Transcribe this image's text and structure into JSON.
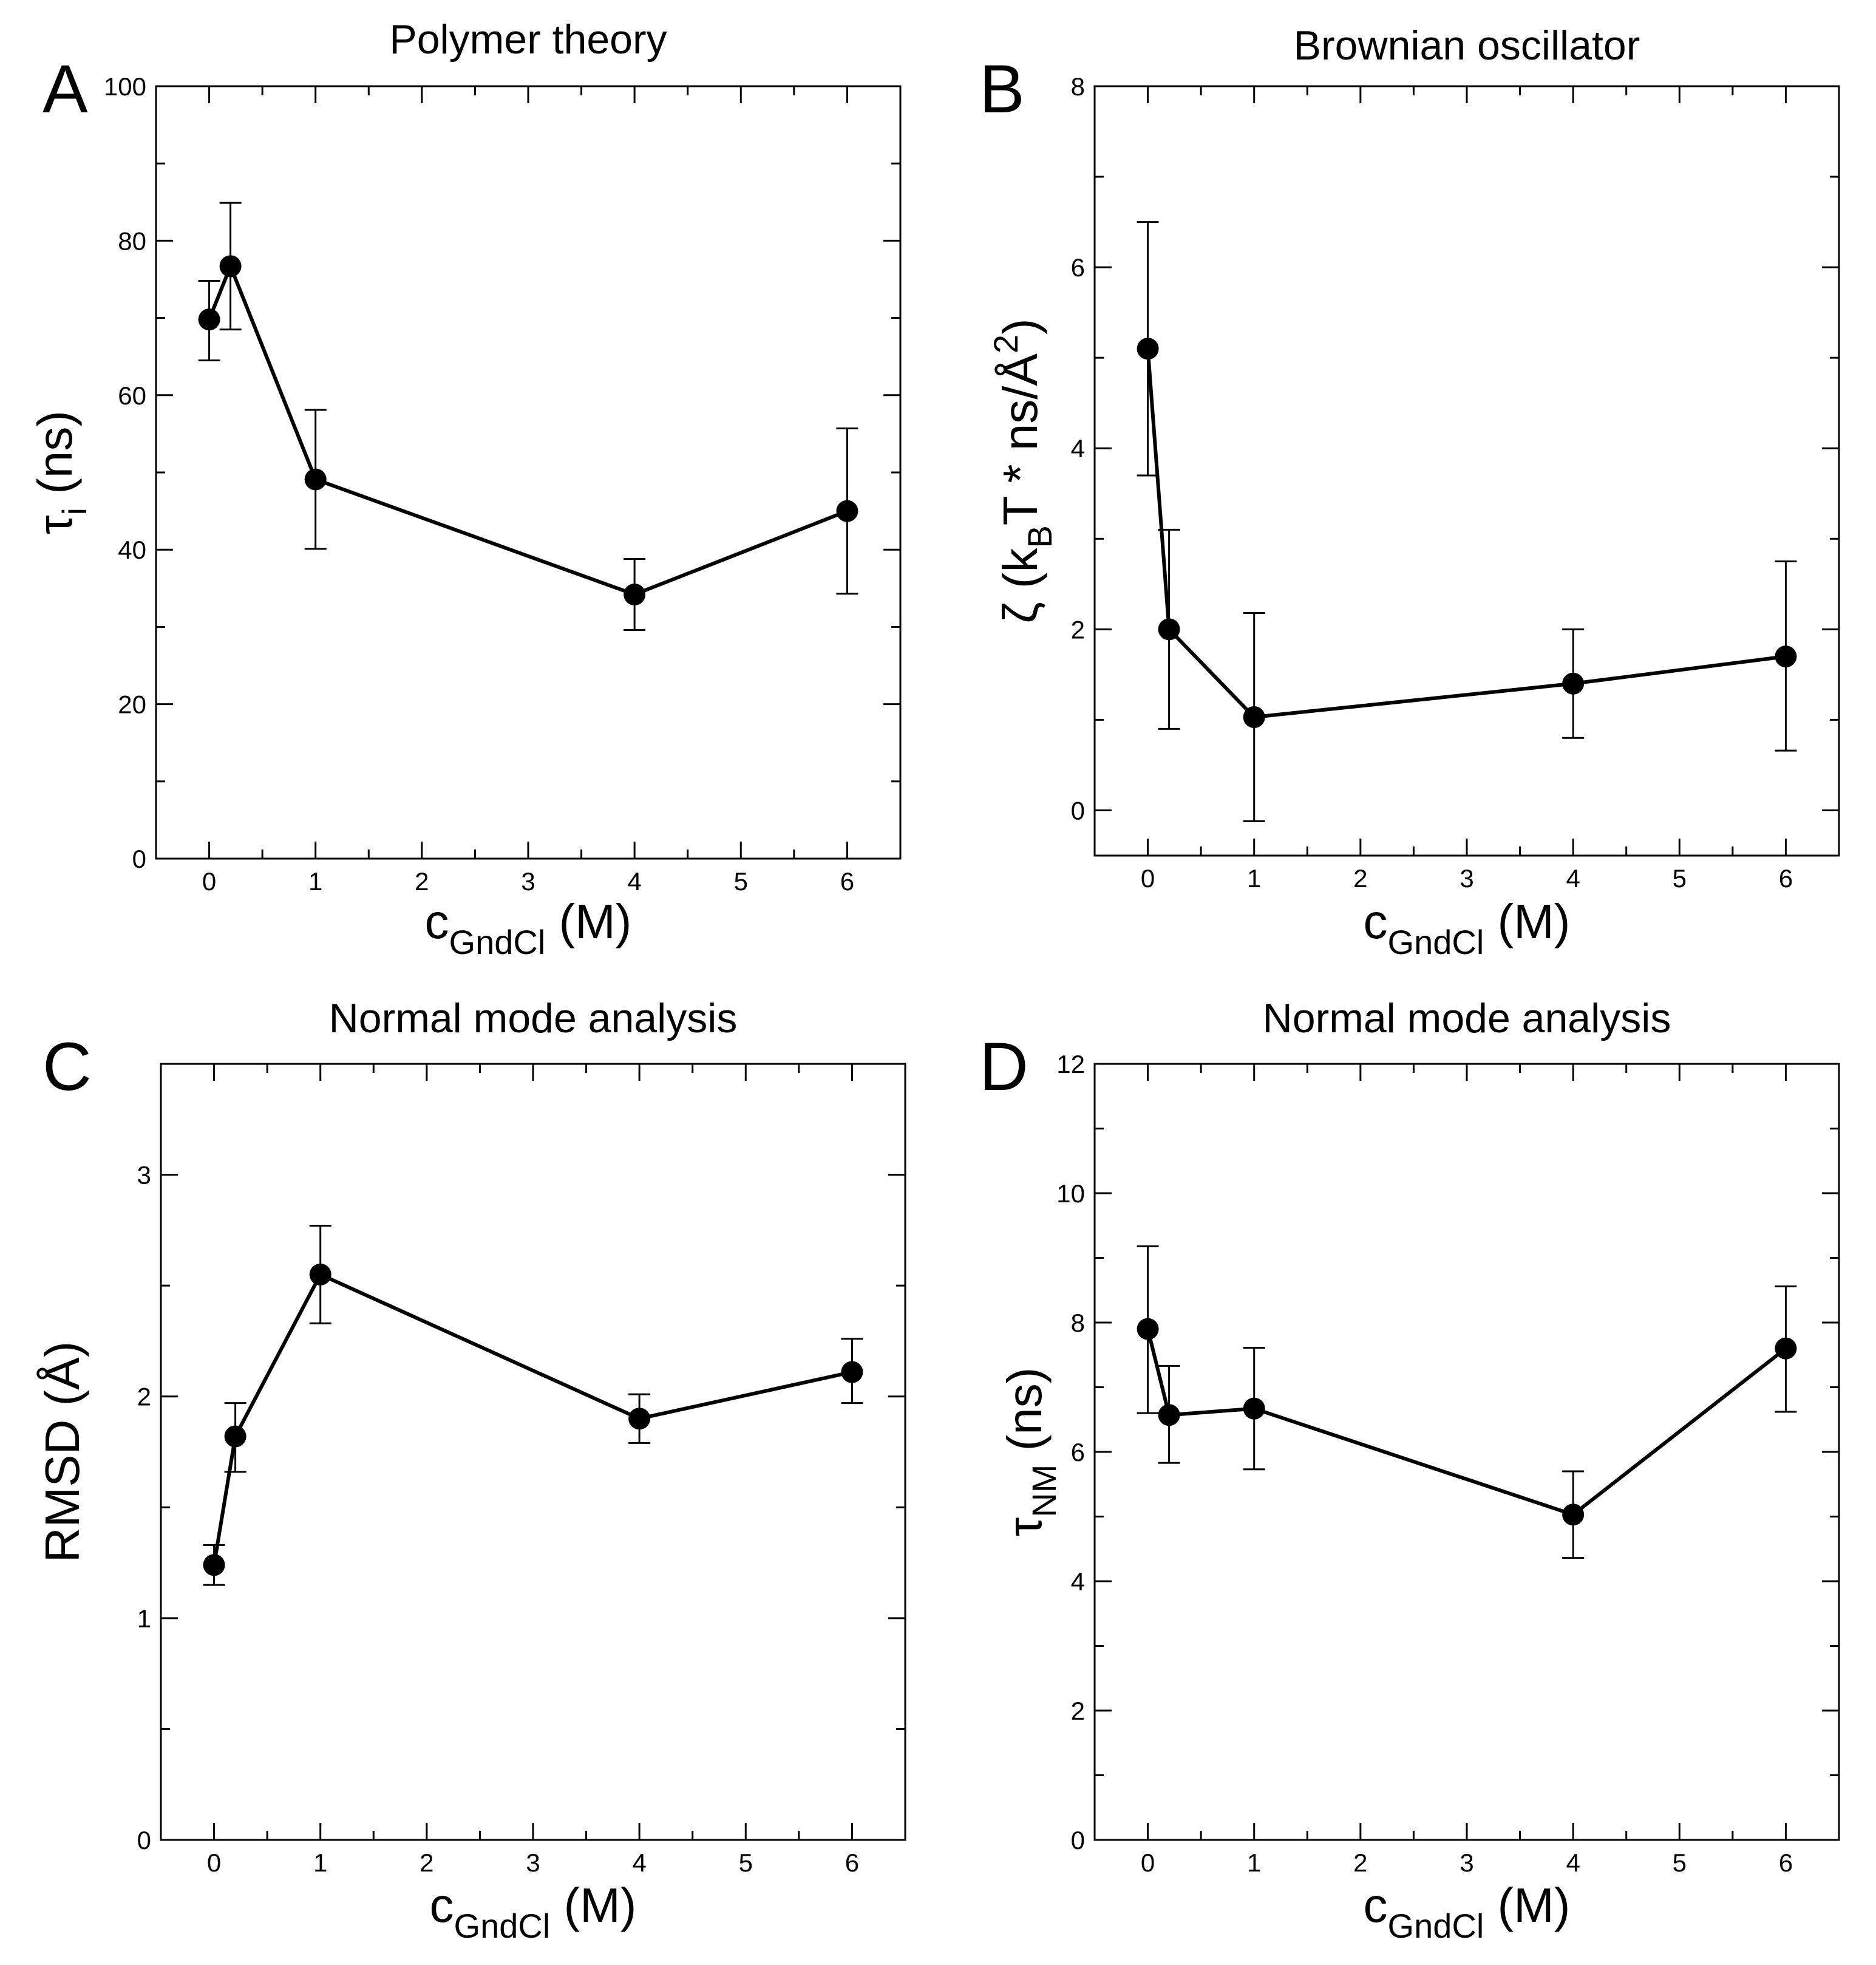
{
  "chart_data": [
    {
      "panel": "A",
      "type": "line",
      "title": "Polymer theory",
      "ylabel": {
        "base": "τ",
        "sub": "i",
        "rest": " (ns)"
      },
      "xlabel": {
        "base": "c",
        "sub": "GndCl",
        "rest": " (M)"
      },
      "xlim": [
        -0.5,
        6.5
      ],
      "ylim": [
        0,
        100
      ],
      "xticks": [
        "0",
        "1",
        "2",
        "3",
        "4",
        "5",
        "6"
      ],
      "yticks": [
        "0",
        "20",
        "40",
        "60",
        "80",
        "100"
      ],
      "x": [
        0,
        0.2,
        1,
        4,
        6
      ],
      "y": [
        69.8,
        76.7,
        49.1,
        34.2,
        45.0
      ],
      "err_low": [
        64.5,
        68.5,
        40.1,
        29.6,
        34.3
      ],
      "err_high": [
        74.8,
        84.9,
        58.1,
        38.8,
        55.7
      ]
    },
    {
      "panel": "B",
      "type": "line",
      "title": "Brownian oscillator",
      "ylabel": {
        "parts": [
          "ζ (k",
          "B",
          "T * ns/Å",
          "2",
          ")"
        ]
      },
      "xlabel": {
        "base": "c",
        "sub": "GndCl",
        "rest": " (M)"
      },
      "xlim": [
        -0.5,
        6.5
      ],
      "ylim": [
        -0.5,
        8
      ],
      "xticks": [
        "0",
        "1",
        "2",
        "3",
        "4",
        "5",
        "6"
      ],
      "yticks": [
        "0",
        "2",
        "4",
        "6",
        "8"
      ],
      "x": [
        0,
        0.2,
        1,
        4,
        6
      ],
      "y": [
        5.1,
        2.0,
        1.03,
        1.4,
        1.7
      ],
      "err_low": [
        3.7,
        0.9,
        -0.12,
        0.8,
        0.66
      ],
      "err_high": [
        6.5,
        3.1,
        2.18,
        2.0,
        2.75
      ]
    },
    {
      "panel": "C",
      "type": "line",
      "title": "Normal mode analysis",
      "ylabel": {
        "base": "RMSD (Å)",
        "sub": "",
        "rest": ""
      },
      "xlabel": {
        "base": "c",
        "sub": "GndCl",
        "rest": " (M)"
      },
      "xlim": [
        -0.5,
        6.5
      ],
      "ylim": [
        0,
        3.5
      ],
      "xticks": [
        "0",
        "1",
        "2",
        "3",
        "4",
        "5",
        "6"
      ],
      "yticks": [
        "0",
        "1",
        "2",
        "3"
      ],
      "x": [
        0,
        0.2,
        1,
        4,
        6
      ],
      "y": [
        1.24,
        1.82,
        2.55,
        1.9,
        2.11
      ],
      "err_low": [
        1.15,
        1.66,
        2.33,
        1.79,
        1.97
      ],
      "err_high": [
        1.33,
        1.97,
        2.77,
        2.01,
        2.26
      ]
    },
    {
      "panel": "D",
      "type": "line",
      "title": "Normal mode analysis",
      "ylabel": {
        "base": "τ",
        "sub": "NM",
        "rest": " (ns)"
      },
      "xlabel": {
        "base": "c",
        "sub": "GndCl",
        "rest": " (M)"
      },
      "xlim": [
        -0.5,
        6.5
      ],
      "ylim": [
        0,
        12
      ],
      "xticks": [
        "0",
        "1",
        "2",
        "3",
        "4",
        "5",
        "6"
      ],
      "yticks": [
        "0",
        "2",
        "4",
        "6",
        "8",
        "10",
        "12"
      ],
      "x": [
        0,
        0.2,
        1,
        4,
        6
      ],
      "y": [
        7.9,
        6.57,
        6.67,
        5.03,
        7.6
      ],
      "err_low": [
        6.6,
        5.83,
        5.73,
        4.36,
        6.62
      ],
      "err_high": [
        9.18,
        7.33,
        7.61,
        5.7,
        8.56
      ]
    }
  ]
}
